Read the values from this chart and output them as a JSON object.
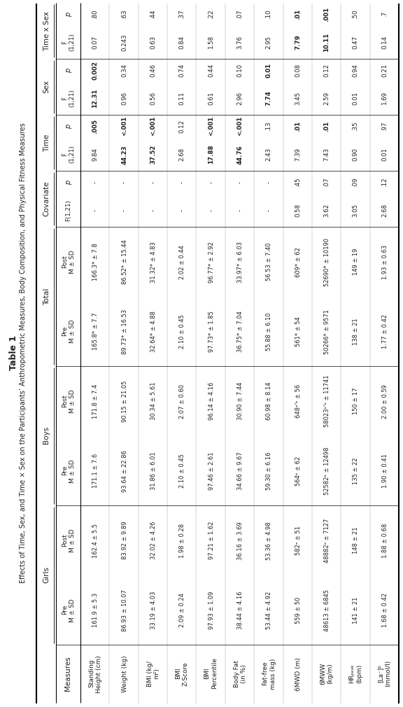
{
  "title": "Table 1",
  "subtitle": "Effects of Time, Sex, and Time × Sex on the Participants’ Anthropometric Measures, Body Composition, and Physical Fitness Measures",
  "measures": [
    "Standing\nHeight (cm)",
    "Weight (kg)",
    "BMI (kg/\nm²)",
    "BMI\nZ-Score",
    "BMI\nPercentile",
    "Body Fat\n(in %)",
    "Fat-free\nmass (kg)",
    "6MWD (m)",
    "6MWW\n(kg/m)",
    "HRₚₑₐₖ\n(bpm)",
    "[La⁻]ᵇ\n(mmol/l)"
  ],
  "girls_pre": [
    "161.9 ± 5.3",
    "86.93 ± 10.07",
    "33.19 ± 4.03",
    "2.09 ± 0.24",
    "97.93 ± 1.09",
    "38.44 ± 4.16",
    "53.44 ± 4.92",
    "559 ± 50",
    "48613 ± 6845",
    "141 ± 21",
    "1.68 ± 0.42"
  ],
  "girls_post": [
    "162.4 ± 5.5",
    "83.92 ± 9.89",
    "32.02 ± 4.26",
    "1.98 ± 0.28",
    "97.21 ± 1.62",
    "36.16 ± 3.69",
    "53.36 ± 4.98",
    "582ᵃ ± 51",
    "48882ᵃ ± 7127",
    "148 ± 21",
    "1.88 ± 0.68"
  ],
  "boys_pre": [
    "171.1 ± 7.6",
    "93.64 ± 22.86",
    "31.86 ± 6.01",
    "2.10 ± 0.45",
    "97.46 ± 2.61",
    "34.66 ± 9.67",
    "59.30 ± 6.16",
    "564ᵇ ± 62",
    "52582ᵇ ± 12498",
    "135 ± 22",
    "1.90 ± 0.41"
  ],
  "boys_post": [
    "171.8 ± 7.4",
    "90.15 ± 21.05",
    "30.34 ± 5.61",
    "2.07 ± 0.60",
    "96.14 ± 4.16",
    "30.90 ± 7.44",
    "60.98 ± 8.14",
    "648ᵃ’ᵇ ± 56",
    "58023ᵃ’ᵇ ± 11741",
    "150 ± 17",
    "2.00 ± 0.59"
  ],
  "total_pre": [
    "165.8* ± 7.7",
    "89.73* ± 16.53",
    "32.64* ± 4.88",
    "2.10 ± 0.45",
    "97.73* ± 1.85",
    "36.75* ± 7.04",
    "55.88 ± 6.10",
    "561* ± 54",
    "50266* ± 9571",
    "138 ± 21",
    "1.77 ± 0.42"
  ],
  "total_post": [
    "166.3* ± 7.8",
    "86.52* ± 15.44",
    "31.32* ± 4.83",
    "2.02 ± 0.44",
    "96.77* ± 2.92",
    "33.97* ± 6.03",
    "56.53 ± 7.40",
    "609* ± 62",
    "52690* ± 10190",
    "149 ± 19",
    "1.93 ± 0.63"
  ],
  "cov_F": [
    "-",
    "-",
    "-",
    "-",
    "-",
    "-",
    "-",
    "0.58",
    "3.62",
    "3.05",
    "2.68"
  ],
  "cov_p": [
    "-",
    "-",
    "-",
    "-",
    "-",
    "-",
    "-",
    ".45",
    ".07",
    ".09",
    ".12"
  ],
  "time_F": [
    "9.84",
    "44.23",
    "37.52",
    "2.68",
    "17.88",
    "44.76",
    "2.43",
    "7.39",
    "7.43",
    "0.90",
    "0.01"
  ],
  "time_p": [
    ".005",
    "<.001",
    "<.001",
    "0.12",
    "<.001",
    "<.001",
    ".13",
    ".01",
    ".01",
    ".35",
    ".97"
  ],
  "time_p_bold": [
    true,
    true,
    true,
    false,
    true,
    true,
    false,
    true,
    true,
    false,
    false
  ],
  "time_F_bold": [
    false,
    true,
    true,
    false,
    true,
    true,
    false,
    false,
    false,
    false,
    false
  ],
  "sex_F": [
    "12.31",
    "0.96",
    "0.56",
    "0.11",
    "0.61",
    "2.96",
    "7.74",
    "3.45",
    "2.59",
    "0.01",
    "1.69"
  ],
  "sex_p": [
    "0.002",
    "0.34",
    "0.46",
    "0.74",
    "0.44",
    "0.10",
    "0.01",
    "0.08",
    "0.12",
    "0.94",
    "0.21"
  ],
  "sex_p_bold": [
    true,
    false,
    false,
    false,
    false,
    false,
    true,
    false,
    false,
    false,
    false
  ],
  "sex_F_bold": [
    true,
    false,
    false,
    false,
    false,
    false,
    true,
    false,
    false,
    false,
    false
  ],
  "timesex_F": [
    "0.07",
    "0.243",
    "0.63",
    "0.84",
    "1.58",
    "3.76",
    "2.95",
    "7.79",
    "10.11",
    "0.47",
    "0.14"
  ],
  "timesex_p": [
    ".80",
    ".63",
    ".44",
    ".37",
    ".22",
    ".07",
    ".10",
    ".01",
    ".001",
    ".50",
    ".7"
  ],
  "timesex_p_bold": [
    false,
    false,
    false,
    false,
    false,
    false,
    false,
    true,
    true,
    false,
    false
  ],
  "timesex_F_bold": [
    false,
    false,
    false,
    false,
    false,
    false,
    false,
    true,
    true,
    false,
    false
  ],
  "bg_color": "#ffffff",
  "text_color": "#222222"
}
